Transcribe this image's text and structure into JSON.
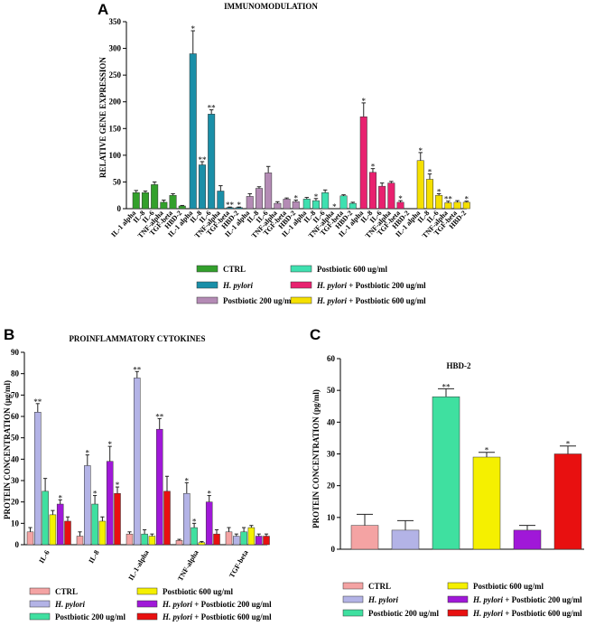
{
  "chart_data": [
    {
      "id": "A",
      "type": "bar",
      "panel_label": "A",
      "title": "IMMUNOMODULATION",
      "ylabel": "RELATIVE GENE EXPRESSION",
      "ylim": [
        0,
        350
      ],
      "yticks": [
        "0",
        "50",
        "100",
        "150",
        "200",
        "250",
        "300",
        "350"
      ],
      "categories": [
        "IL-1 alpha",
        "IL-8",
        "IL-6",
        "TNF-alpha",
        "TGF-beta",
        "HBD-2"
      ],
      "series": [
        {
          "name": "CTRL",
          "color": "#33a02c",
          "values": [
            30,
            30,
            45,
            12,
            25,
            5
          ],
          "errors": [
            4,
            3,
            5,
            4,
            3,
            1
          ],
          "sig": [
            "",
            "",
            "",
            "",
            "",
            ""
          ]
        },
        {
          "name": "H. pylori",
          "color": "#1a8fa8",
          "values": [
            290,
            82,
            177,
            33,
            2,
            2
          ],
          "errors": [
            43,
            6,
            8,
            10,
            1,
            1
          ],
          "sig": [
            "*",
            "**",
            "**",
            "",
            "**",
            "*"
          ]
        },
        {
          "name": "Postbiotic 200 ug/ml",
          "color": "#b48bb5",
          "values": [
            23,
            38,
            67,
            10,
            18,
            13
          ],
          "errors": [
            5,
            3,
            12,
            3,
            2,
            3
          ],
          "sig": [
            "",
            "",
            "",
            "",
            "",
            "*"
          ]
        },
        {
          "name": "Postbiotic 600 ug/ml",
          "color": "#3fe0b0",
          "values": [
            18,
            15,
            30,
            0,
            24,
            10
          ],
          "errors": [
            3,
            4,
            5,
            0,
            2,
            2
          ],
          "sig": [
            "",
            "*",
            "",
            "*",
            "",
            ""
          ]
        },
        {
          "name": "H. pylori + Postbiotic 200 ug/ml",
          "color": "#e8216f",
          "values": [
            172,
            68,
            42,
            48,
            12,
            0
          ],
          "errors": [
            26,
            7,
            6,
            3,
            3,
            0
          ],
          "sig": [
            "*",
            "*",
            "",
            "",
            "*",
            ""
          ]
        },
        {
          "name": "H. pylori + Postbiotic 600 ug/ml",
          "color": "#f5e000",
          "values": [
            90,
            55,
            25,
            11,
            12,
            12
          ],
          "errors": [
            15,
            10,
            3,
            3,
            3,
            2
          ],
          "sig": [
            "*",
            "*",
            "*",
            "**",
            "",
            "*"
          ]
        }
      ]
    },
    {
      "id": "B",
      "type": "bar",
      "panel_label": "B",
      "title": "PROINFLAMMATORY CYTOKINES",
      "ylabel": "PROTEIN CONCENTRATION (μg/ml)",
      "ylim": [
        0,
        90
      ],
      "yticks": [
        "0",
        "10",
        "20",
        "30",
        "40",
        "50",
        "60",
        "70",
        "80",
        "90"
      ],
      "categories": [
        "IL-6",
        "IL-8",
        "IL-1-alpha",
        "TNF-alpha",
        "TGF-beta"
      ],
      "series": [
        {
          "name": "CTRL",
          "color": "#f4a3a3",
          "values": [
            6,
            4,
            5,
            2,
            6
          ],
          "errors": [
            2,
            2,
            1,
            0.5,
            2
          ],
          "sig": [
            "",
            "",
            "",
            "",
            ""
          ]
        },
        {
          "name": "H. pylori",
          "color": "#b3b3e6",
          "values": [
            62,
            37,
            78,
            24,
            4
          ],
          "errors": [
            4,
            5,
            3,
            5,
            1
          ],
          "sig": [
            "**",
            "*",
            "**",
            "*",
            ""
          ]
        },
        {
          "name": "Postbiotic 200 ug/ml",
          "color": "#3fe0a0",
          "values": [
            25,
            19,
            5,
            8,
            6
          ],
          "errors": [
            6,
            4,
            2,
            2,
            2
          ],
          "sig": [
            "",
            "*",
            "",
            "*",
            ""
          ]
        },
        {
          "name": "Postbiotic 600 ug/ml",
          "color": "#f5f000",
          "values": [
            14,
            11,
            4,
            1,
            8
          ],
          "errors": [
            2,
            2,
            1,
            0.5,
            1
          ],
          "sig": [
            "",
            "",
            "",
            "",
            ""
          ]
        },
        {
          "name": "H. pylori + Postbiotic 200 ug/ml",
          "color": "#a018d8",
          "values": [
            19,
            39,
            54,
            20,
            4
          ],
          "errors": [
            2,
            7,
            5,
            3,
            1
          ],
          "sig": [
            "*",
            "*",
            "**",
            "*",
            ""
          ]
        },
        {
          "name": "H. pylori + Postbiotic 600 ug/ml",
          "color": "#e81010",
          "values": [
            11,
            24,
            25,
            5,
            4
          ],
          "errors": [
            2,
            3,
            7,
            2,
            1
          ],
          "sig": [
            "",
            "*",
            "",
            "",
            ""
          ]
        }
      ]
    },
    {
      "id": "C",
      "type": "bar",
      "panel_label": "C",
      "title": "HBD-2",
      "ylabel": "PROTEIN CONCENTRATION (pg/ml)",
      "ylim": [
        0,
        60
      ],
      "yticks": [
        "0",
        "10",
        "20",
        "30",
        "40",
        "50",
        "60"
      ],
      "categories": [
        "CTRL",
        "H. pylori",
        "Postbiotic 200 ug/ml",
        "Postbiotic 600 ug/ml",
        "H. pylori + Postbiotic 200 ug/ml",
        "H. pylori + Postbiotic 600 ug/ml"
      ],
      "colors": [
        "#f4a3a3",
        "#b3b3e6",
        "#3fe0a0",
        "#f5f000",
        "#a018d8",
        "#e81010"
      ],
      "values": [
        7.5,
        6,
        48,
        29,
        6,
        30
      ],
      "errors": [
        3.5,
        3,
        2.5,
        1.5,
        1.5,
        2.5
      ],
      "sig": [
        "",
        "",
        "**",
        "*",
        "",
        "*"
      ]
    }
  ],
  "legends": {
    "A": [
      {
        "prefix": "",
        "em": "",
        "suffix": "CTRL"
      },
      {
        "prefix": "",
        "em": "H. pylori",
        "suffix": ""
      },
      {
        "prefix": "",
        "em": "",
        "suffix": "Postbiotic 200 ug/ml"
      },
      {
        "prefix": "",
        "em": "",
        "suffix": "Postbiotic 600 ug/ml"
      },
      {
        "prefix": "",
        "em": "H. pylori",
        "suffix": " + Postbiotic 200 ug/ml"
      },
      {
        "prefix": "",
        "em": "H. pylori",
        "suffix": " + Postbiotic 600 ug/ml"
      }
    ],
    "B": [
      {
        "em": "",
        "suffix": "CTRL"
      },
      {
        "em": "H. pylori",
        "suffix": ""
      },
      {
        "em": "",
        "suffix": "Postbiotic 200 ug/ml"
      },
      {
        "em": "",
        "suffix": "Postbiotic 600 ug/ml"
      },
      {
        "em": "H. pylori",
        "suffix": " + Postbiotic 200 ug/ml"
      },
      {
        "em": "H. pylori",
        "suffix": " + Postbiotic 600 ug/ml"
      }
    ],
    "C": [
      {
        "em": "",
        "suffix": "CTRL"
      },
      {
        "em": "H. pylori",
        "suffix": ""
      },
      {
        "em": "",
        "suffix": "Postbiotic 200 ug/ml"
      },
      {
        "em": "",
        "suffix": "Postbiotic 600 ug/ml"
      },
      {
        "em": "H. pylori",
        "suffix": " + Postbiotic 200 ug/ml"
      },
      {
        "em": "H. pylori",
        "suffix": " + Postbiotic 600 ug/ml"
      }
    ]
  }
}
